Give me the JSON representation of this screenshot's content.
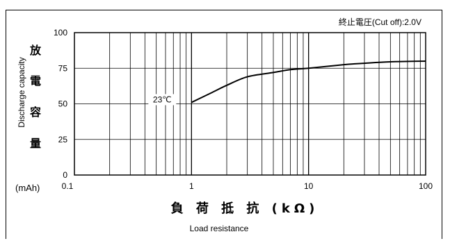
{
  "cutoff_note": "終止電圧(Cut off):2.0V",
  "chart_data": {
    "type": "line",
    "x_scale": "log",
    "xlim": [
      0.1,
      100
    ],
    "ylim": [
      0,
      100
    ],
    "x_ticks": [
      "0.1",
      "1",
      "10",
      "100"
    ],
    "y_ticks": [
      "0",
      "25",
      "50",
      "75",
      "100"
    ],
    "xlabel_jp": "負 荷 抵 抗 (kΩ)",
    "xlabel_en": "Load resistance",
    "ylabel_jp": [
      "放",
      "電",
      "容",
      "量"
    ],
    "ylabel_en": "Discharge capacity",
    "yunit": "(mAh)",
    "grid": true,
    "series": [
      {
        "name": "23℃",
        "x": [
          1,
          1.5,
          2,
          3,
          5,
          7,
          10,
          20,
          30,
          50,
          100
        ],
        "y": [
          51,
          58,
          63,
          69,
          72,
          74,
          75,
          77.5,
          78.5,
          79.5,
          80
        ]
      }
    ]
  }
}
